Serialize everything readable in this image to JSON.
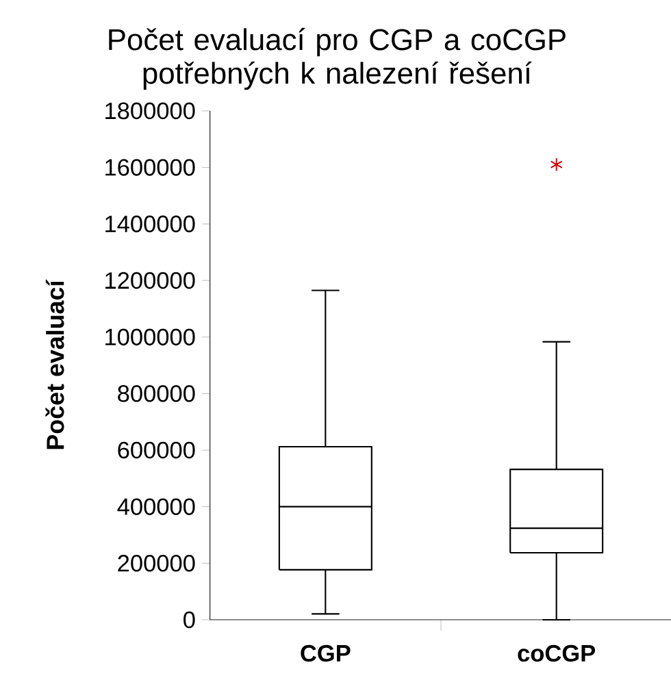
{
  "chart_data": {
    "type": "box",
    "title": "Počet evaluací pro CGP a coCGP potřebných k nalezení řešení",
    "ylabel": "Počet evaluací",
    "categories": [
      "CGP",
      "coCGP"
    ],
    "boxes": [
      {
        "low": 21000,
        "q1": 177000,
        "median": 400000,
        "q3": 612000,
        "high": 1165000
      },
      {
        "low": 0,
        "q1": 237000,
        "median": 324000,
        "q3": 532000,
        "high": 983000,
        "outliers": [
          1610000
        ]
      }
    ],
    "ylim": [
      0,
      1800000
    ],
    "yticks": [
      0,
      200000,
      400000,
      600000,
      800000,
      1000000,
      1200000,
      1400000,
      1600000,
      1800000
    ],
    "grid": false
  }
}
